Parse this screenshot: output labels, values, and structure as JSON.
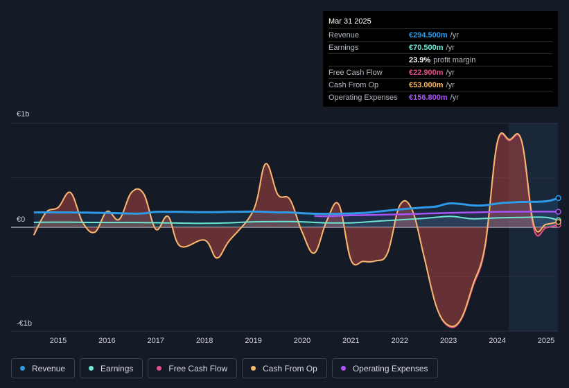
{
  "tooltip": {
    "date": "Mar 31 2025",
    "rows": [
      {
        "label": "Revenue",
        "value": "€294.500m",
        "unit": "/yr",
        "color": "#2f9be8"
      },
      {
        "label": "Earnings",
        "value": "€70.500m",
        "unit": "/yr",
        "color": "#6ee6d2"
      },
      {
        "label": "",
        "value": "23.9%",
        "unit": "profit margin",
        "color": "#ffffff"
      },
      {
        "label": "Free Cash Flow",
        "value": "€22.900m",
        "unit": "/yr",
        "color": "#e0508a"
      },
      {
        "label": "Cash From Op",
        "value": "€53.000m",
        "unit": "/yr",
        "color": "#f5b86a"
      },
      {
        "label": "Operating Expenses",
        "value": "€156.800m",
        "unit": "/yr",
        "color": "#a855f7"
      }
    ]
  },
  "legend": [
    {
      "label": "Revenue",
      "color": "#2f9be8"
    },
    {
      "label": "Earnings",
      "color": "#6ee6d2"
    },
    {
      "label": "Free Cash Flow",
      "color": "#e0508a"
    },
    {
      "label": "Cash From Op",
      "color": "#f5b86a"
    },
    {
      "label": "Operating Expenses",
      "color": "#a855f7"
    }
  ],
  "chart_data": {
    "type": "line",
    "title": "",
    "xlabel": "",
    "ylabel": "",
    "units": "€m",
    "xlim": [
      2014.5,
      2025.25
    ],
    "ylim": [
      -1000,
      1000
    ],
    "y_tick_labels": [
      {
        "value": 1000,
        "label": "€1b"
      },
      {
        "value": 0,
        "label": "€0"
      },
      {
        "value": -1000,
        "label": "-€1b"
      }
    ],
    "x_ticks": [
      2015,
      2016,
      2017,
      2018,
      2019,
      2020,
      2021,
      2022,
      2023,
      2024,
      2025
    ],
    "forecast_start": 2024.25,
    "series": [
      {
        "name": "Revenue",
        "color": "#2f9be8",
        "points": [
          [
            2014.5,
            150
          ],
          [
            2015,
            150
          ],
          [
            2015.5,
            148
          ],
          [
            2016,
            145
          ],
          [
            2016.5,
            138
          ],
          [
            2016.75,
            140
          ],
          [
            2017,
            155
          ],
          [
            2017.5,
            155
          ],
          [
            2018,
            152
          ],
          [
            2018.5,
            155
          ],
          [
            2019,
            158
          ],
          [
            2019.5,
            150
          ],
          [
            2019.75,
            150
          ],
          [
            2020,
            142
          ],
          [
            2020.5,
            135
          ],
          [
            2021,
            140
          ],
          [
            2021.25,
            145
          ],
          [
            2021.5,
            155
          ],
          [
            2022,
            180
          ],
          [
            2022.5,
            200
          ],
          [
            2022.75,
            210
          ],
          [
            2023,
            240
          ],
          [
            2023.25,
            235
          ],
          [
            2023.5,
            220
          ],
          [
            2023.75,
            222
          ],
          [
            2024,
            240
          ],
          [
            2024.25,
            250
          ],
          [
            2024.5,
            255
          ],
          [
            2025,
            262
          ],
          [
            2025.25,
            294.5
          ]
        ]
      },
      {
        "name": "Earnings",
        "color": "#6ee6d2",
        "points": [
          [
            2014.5,
            50
          ],
          [
            2015,
            52
          ],
          [
            2015.5,
            50
          ],
          [
            2016,
            48
          ],
          [
            2016.5,
            48
          ],
          [
            2017,
            46
          ],
          [
            2017.5,
            42
          ],
          [
            2018,
            40
          ],
          [
            2018.5,
            45
          ],
          [
            2019,
            55
          ],
          [
            2019.5,
            57
          ],
          [
            2019.75,
            57
          ],
          [
            2020,
            55
          ],
          [
            2020.5,
            45
          ],
          [
            2021,
            45
          ],
          [
            2021.5,
            60
          ],
          [
            2022,
            75
          ],
          [
            2022.5,
            90
          ],
          [
            2023,
            110
          ],
          [
            2023.25,
            100
          ],
          [
            2023.5,
            85
          ],
          [
            2024,
            95
          ],
          [
            2024.5,
            100
          ],
          [
            2025,
            100
          ],
          [
            2025.25,
            70.5
          ]
        ]
      },
      {
        "name": "Operating Expenses",
        "color": "#a855f7",
        "points": [
          [
            2020.25,
            115
          ],
          [
            2020.5,
            112
          ],
          [
            2021,
            120
          ],
          [
            2021.5,
            125
          ],
          [
            2022,
            130
          ],
          [
            2022.5,
            138
          ],
          [
            2023,
            145
          ],
          [
            2023.5,
            150
          ],
          [
            2024,
            155
          ],
          [
            2024.5,
            157
          ],
          [
            2025,
            158
          ],
          [
            2025.25,
            156.8
          ]
        ]
      },
      {
        "name": "Free Cash Flow",
        "color": "#e0508a",
        "points": [
          [
            2014.5,
            -80
          ],
          [
            2014.75,
            150
          ],
          [
            2015,
            200
          ],
          [
            2015.25,
            350
          ],
          [
            2015.5,
            50
          ],
          [
            2015.75,
            -50
          ],
          [
            2016,
            160
          ],
          [
            2016.25,
            80
          ],
          [
            2016.5,
            350
          ],
          [
            2016.75,
            340
          ],
          [
            2017,
            -20
          ],
          [
            2017.25,
            110
          ],
          [
            2017.5,
            -190
          ],
          [
            2018,
            -130
          ],
          [
            2018.25,
            -310
          ],
          [
            2018.5,
            -140
          ],
          [
            2019,
            170
          ],
          [
            2019.25,
            640
          ],
          [
            2019.5,
            330
          ],
          [
            2019.75,
            280
          ],
          [
            2020,
            -50
          ],
          [
            2020.25,
            -260
          ],
          [
            2020.5,
            60
          ],
          [
            2020.75,
            230
          ],
          [
            2021,
            -330
          ],
          [
            2021.25,
            -345
          ],
          [
            2021.5,
            -340
          ],
          [
            2021.75,
            -260
          ],
          [
            2022,
            220
          ],
          [
            2022.25,
            180
          ],
          [
            2022.5,
            -300
          ],
          [
            2022.75,
            -800
          ],
          [
            2023,
            -1000
          ],
          [
            2023.25,
            -940
          ],
          [
            2023.5,
            -600
          ],
          [
            2023.75,
            -200
          ],
          [
            2024,
            850
          ],
          [
            2024.25,
            875
          ],
          [
            2024.5,
            860
          ],
          [
            2024.75,
            -20
          ],
          [
            2025,
            -5
          ],
          [
            2025.25,
            22.9
          ]
        ]
      },
      {
        "name": "Cash From Op",
        "color": "#f5b86a",
        "points": [
          [
            2014.5,
            -80
          ],
          [
            2014.75,
            150
          ],
          [
            2015,
            200
          ],
          [
            2015.25,
            350
          ],
          [
            2015.5,
            50
          ],
          [
            2015.75,
            -50
          ],
          [
            2016,
            160
          ],
          [
            2016.25,
            80
          ],
          [
            2016.5,
            350
          ],
          [
            2016.75,
            340
          ],
          [
            2017,
            -20
          ],
          [
            2017.25,
            110
          ],
          [
            2017.5,
            -190
          ],
          [
            2018,
            -130
          ],
          [
            2018.25,
            -310
          ],
          [
            2018.5,
            -140
          ],
          [
            2019,
            170
          ],
          [
            2019.25,
            640
          ],
          [
            2019.5,
            330
          ],
          [
            2019.75,
            280
          ],
          [
            2020,
            -50
          ],
          [
            2020.25,
            -260
          ],
          [
            2020.5,
            60
          ],
          [
            2020.75,
            230
          ],
          [
            2021,
            -330
          ],
          [
            2021.25,
            -345
          ],
          [
            2021.5,
            -340
          ],
          [
            2021.75,
            -260
          ],
          [
            2022,
            220
          ],
          [
            2022.25,
            180
          ],
          [
            2022.5,
            -300
          ],
          [
            2022.75,
            -800
          ],
          [
            2023,
            -990
          ],
          [
            2023.25,
            -930
          ],
          [
            2023.5,
            -580
          ],
          [
            2023.75,
            -180
          ],
          [
            2024,
            860
          ],
          [
            2024.25,
            885
          ],
          [
            2024.5,
            870
          ],
          [
            2024.75,
            20
          ],
          [
            2025,
            30
          ],
          [
            2025.25,
            53
          ]
        ]
      }
    ]
  }
}
